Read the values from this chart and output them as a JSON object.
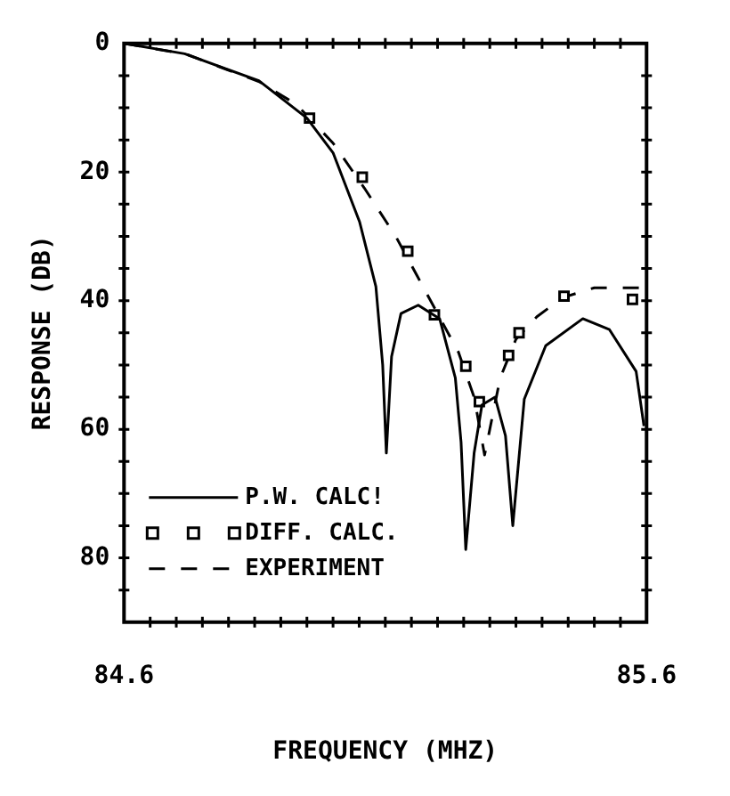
{
  "chart_data": {
    "type": "line",
    "xlabel": "FREQUENCY (MHZ)",
    "ylabel": "RESPONSE (DB)",
    "xlim": [
      84.6,
      85.6
    ],
    "ylim": [
      90,
      0
    ],
    "xticks": [
      84.6,
      {
        "value": 84.65,
        "label": null
      },
      {
        "value": 84.7,
        "label": null
      },
      {
        "value": 84.75,
        "label": null
      },
      {
        "value": 84.8,
        "label": null
      },
      {
        "value": 84.85,
        "label": null
      },
      {
        "value": 84.9,
        "label": null
      },
      {
        "value": 84.95,
        "label": null
      },
      {
        "value": 85.0,
        "label": null
      },
      {
        "value": 85.05,
        "label": null
      },
      {
        "value": 85.1,
        "label": null
      },
      {
        "value": 85.15,
        "label": null
      },
      {
        "value": 85.2,
        "label": null
      },
      {
        "value": 85.25,
        "label": null
      },
      {
        "value": 85.3,
        "label": null
      },
      {
        "value": 85.35,
        "label": null
      },
      {
        "value": 85.4,
        "label": null
      },
      {
        "value": 85.45,
        "label": null
      },
      {
        "value": 85.5,
        "label": null
      },
      {
        "value": 85.55,
        "label": null
      },
      85.6
    ],
    "yticks": [
      0,
      {
        "value": 5,
        "label": null
      },
      {
        "value": 10,
        "label": null
      },
      {
        "value": 15,
        "label": null
      },
      20,
      {
        "value": 25,
        "label": null
      },
      {
        "value": 30,
        "label": null
      },
      {
        "value": 35,
        "label": null
      },
      40,
      {
        "value": 45,
        "label": null
      },
      {
        "value": 50,
        "label": null
      },
      {
        "value": 55,
        "label": null
      },
      60,
      {
        "value": 65,
        "label": null
      },
      {
        "value": 70,
        "label": null
      },
      {
        "value": 75,
        "label": null
      },
      80,
      {
        "value": 85,
        "label": null
      },
      {
        "value": 90,
        "label": null
      }
    ],
    "grid": false,
    "legend": "bottom left",
    "series": [
      {
        "name": "P.W. CALC!",
        "type": "line",
        "color": "#000000",
        "line_style": "solid",
        "marker": "none",
        "x": [
          84.6,
          84.716,
          84.858,
          84.95,
          85.0,
          85.051,
          85.082,
          85.095,
          85.102,
          85.112,
          85.13,
          85.163,
          85.204,
          85.234,
          85.245,
          85.254,
          85.27,
          85.285,
          85.31,
          85.33,
          85.344,
          85.366,
          85.407,
          85.478,
          85.529,
          85.58,
          85.595
        ],
        "values": [
          0,
          1.6,
          5.8,
          11.6,
          17,
          27.8,
          37.8,
          50,
          63.7,
          48.7,
          42,
          40.7,
          42.8,
          52,
          62,
          78.7,
          63.7,
          56.2,
          55,
          61,
          75,
          55.3,
          47,
          42.8,
          44.5,
          51,
          59.5
        ]
      },
      {
        "name": "DIFF. CALC.",
        "type": "scatter",
        "color": "#000000",
        "marker": "square",
        "x": [
          84.955,
          85.056,
          85.143,
          85.194,
          85.254,
          85.28,
          85.336,
          85.356,
          85.442,
          85.573
        ],
        "values": [
          11.6,
          20.8,
          32.3,
          42.2,
          50.2,
          55.7,
          48.5,
          45,
          39.3,
          39.8
        ]
      },
      {
        "name": "EXPERIMENT",
        "type": "line",
        "color": "#000000",
        "line_style": "dashed",
        "marker": "none",
        "x": [
          84.6,
          84.72,
          84.86,
          84.93,
          85.0,
          85.06,
          85.12,
          85.16,
          85.2,
          85.24,
          85.27,
          85.29,
          85.3,
          85.32,
          85.35,
          85.39,
          85.44,
          85.5,
          85.6
        ],
        "values": [
          0,
          1.7,
          6,
          9.5,
          15.5,
          22.5,
          30,
          36,
          42,
          48,
          55,
          64,
          60,
          52,
          46,
          42.5,
          39.5,
          38,
          38
        ]
      }
    ]
  }
}
